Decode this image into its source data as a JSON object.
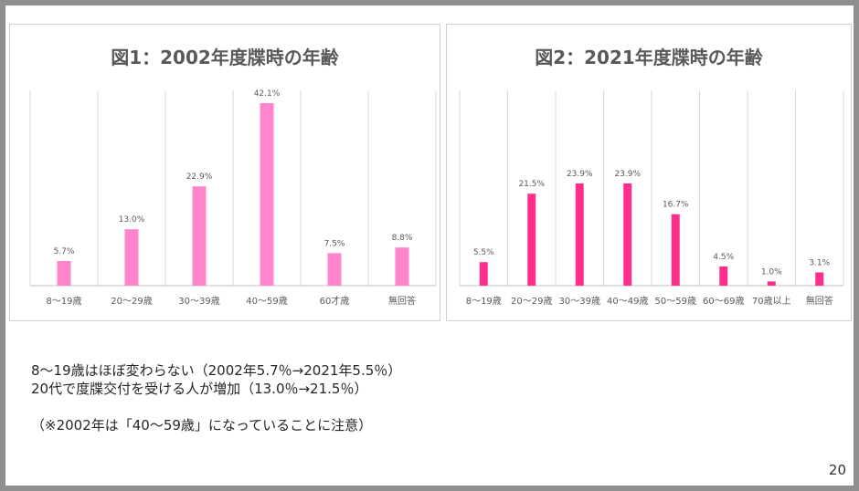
{
  "chart_data": [
    {
      "type": "bar",
      "title": "図1：2002年度牒時の年齢",
      "categories": [
        "8～19歳",
        "20～29歳",
        "30～39歳",
        "40～59歳",
        "60才歳",
        "無回答"
      ],
      "values": [
        5.7,
        13.0,
        22.9,
        42.1,
        7.5,
        8.8
      ],
      "labels": [
        "5.7%",
        "13.0%",
        "22.9%",
        "42.1%",
        "7.5%",
        "8.8%"
      ],
      "color": "#ff85cc",
      "ylim": [
        0,
        42.1
      ],
      "grid": "vertical"
    },
    {
      "type": "bar",
      "title": "図2：2021年度牒時の年齢",
      "categories": [
        "8～19歳",
        "20～29歳",
        "30～39歳",
        "40～49歳",
        "50～59歳",
        "60～69歳",
        "70歳以上",
        "無回答"
      ],
      "values": [
        5.5,
        21.5,
        23.9,
        23.9,
        16.7,
        4.5,
        1.0,
        3.1
      ],
      "labels": [
        "5.5%",
        "21.5%",
        "23.9%",
        "23.9%",
        "16.7%",
        "4.5%",
        "1.0%",
        "3.1%"
      ],
      "color": "#ff2e8c",
      "ylim": [
        0,
        23.9
      ],
      "grid": "vertical"
    }
  ],
  "notes": {
    "line1": "8～19歳はほぼ変わらない（2002年5.7％→2021年5.5％）",
    "line2": "20代で度牒交付を受ける人が増加（13.0％→21.5％）",
    "line3": "（※2002年は「40～59歳」になっていることに注意）"
  },
  "page_number": "20"
}
